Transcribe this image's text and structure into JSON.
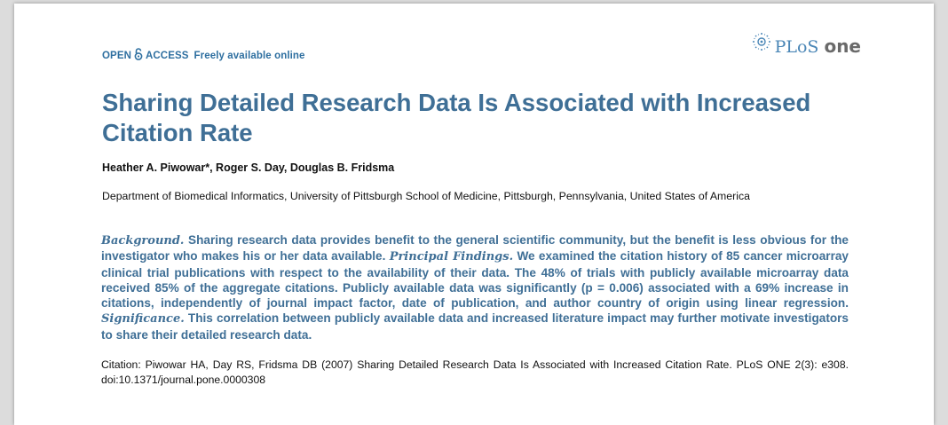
{
  "header": {
    "open": "OPEN",
    "access": "ACCESS",
    "tagline": "Freely available online",
    "logo_plos": "PLoS",
    "logo_one": "one"
  },
  "title": "Sharing Detailed Research Data Is Associated with Increased Citation Rate",
  "authors": "Heather A. Piwowar*, Roger S. Day, Douglas B. Fridsma",
  "affiliation": "Department of Biomedical Informatics, University of Pittsburgh School of Medicine, Pittsburgh, Pennsylvania, United States of America",
  "abstract": {
    "background_head": "Background.",
    "background_text": " Sharing research data provides benefit to the general scientific community, but the benefit is less obvious for the investigator who makes his or her data available. ",
    "findings_head": "Principal Findings.",
    "findings_text": " We examined the citation history of 85 cancer microarray clinical trial publications with respect to the availability of their data. The 48% of trials with publicly available microarray data received 85% of the aggregate citations. Publicly available data was significantly (p = 0.006) associated with a 69% increase in citations, independently of journal impact factor, date of publication, and author country of origin using linear regression. ",
    "significance_head": "Significance.",
    "significance_text": " This correlation between publicly available data and increased literature impact may further motivate investigators to share their detailed research data."
  },
  "citation": "Citation: Piwowar HA, Day RS, Fridsma DB (2007) Sharing Detailed Research Data Is Associated with Increased Citation Rate. PLoS ONE 2(3): e308. doi:10.1371/journal.pone.0000308",
  "colors": {
    "accent_blue": "#3f6f96",
    "open_access_blue": "#2e6fa0"
  }
}
